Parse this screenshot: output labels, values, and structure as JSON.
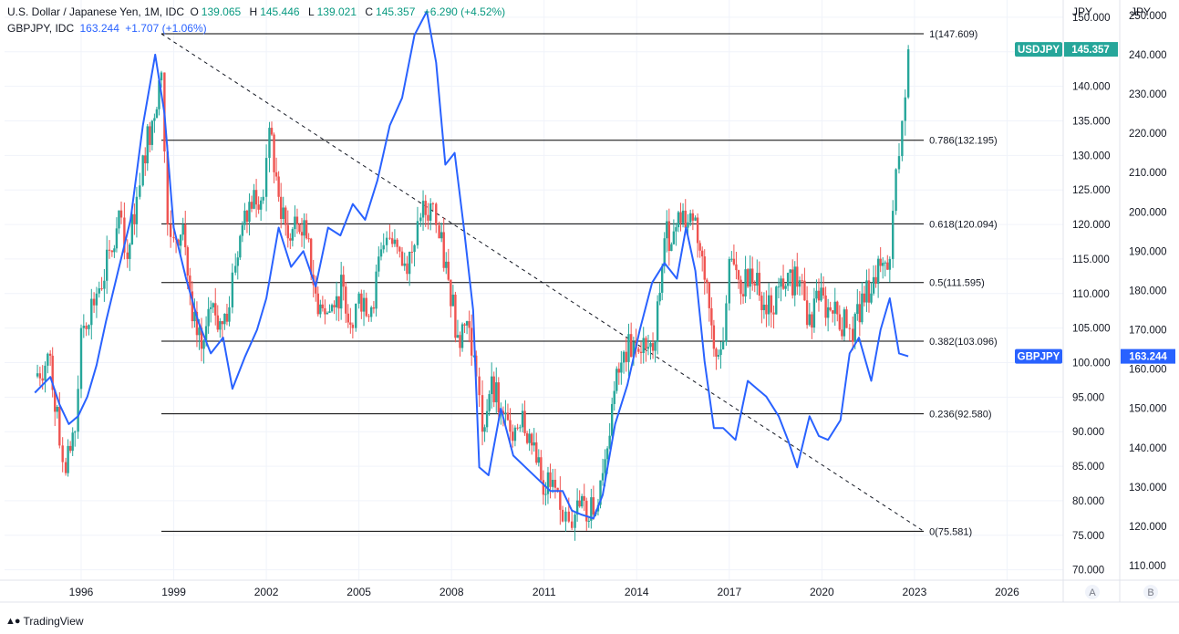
{
  "legend": {
    "main": {
      "name": "U.S. Dollar / Japanese Yen, 1M, IDC",
      "open_label": "O",
      "open": "139.065",
      "high_label": "H",
      "high": "145.446",
      "low_label": "L",
      "low": "139.021",
      "close_label": "C",
      "close": "145.357",
      "change": "+6.290 (+4.52%)"
    },
    "compare": {
      "name": "GBPJPY, IDC",
      "value": "163.244",
      "change": "+1.707 (+1.06%)"
    }
  },
  "axis": {
    "a_unit": "JPY",
    "b_unit": "JPY",
    "a_button": "A",
    "b_button": "B"
  },
  "colors": {
    "up": "#26a69a",
    "down": "#ef5350",
    "compare_line": "#2962ff",
    "usdjpy_badge": "#26a69a",
    "gbpjpy_badge": "#2962ff"
  },
  "brand": {
    "text": "TradingView"
  },
  "chart_data": {
    "type": "line",
    "x_ticks": [
      "1996",
      "1999",
      "2002",
      "2005",
      "2008",
      "2011",
      "2014",
      "2017",
      "2020",
      "2023",
      "2026"
    ],
    "left_axis_ticks": [
      "150.000",
      "145.000",
      "140.000",
      "135.000",
      "130.000",
      "125.000",
      "120.000",
      "115.000",
      "110.000",
      "105.000",
      "100.000",
      "95.000",
      "90.000",
      "85.000",
      "80.000",
      "75.000",
      "70.000"
    ],
    "right_axis_ticks": [
      "250.000",
      "240.000",
      "230.000",
      "220.000",
      "210.000",
      "200.000",
      "190.000",
      "180.000",
      "170.000",
      "160.000",
      "150.000",
      "140.000",
      "130.000",
      "120.000",
      "110.000"
    ],
    "ylim_a": [
      68.5,
      152.5
    ],
    "ylim_b": [
      106.3,
      253.9
    ],
    "series": [
      {
        "name": "USDJPY",
        "type": "candlestick",
        "last_value": "145.357",
        "x": [
          1994.5,
          1995.0,
          1995.3,
          1995.5,
          1995.8,
          1996.0,
          1996.5,
          1997.0,
          1997.3,
          1997.5,
          1997.8,
          1998.0,
          1998.3,
          1998.6,
          1998.8,
          1999.0,
          1999.3,
          1999.6,
          1999.9,
          2000.2,
          2000.5,
          2000.8,
          2001.0,
          2001.3,
          2001.6,
          2001.9,
          2002.1,
          2002.4,
          2002.7,
          2003.0,
          2003.3,
          2003.6,
          2003.9,
          2004.2,
          2004.5,
          2004.8,
          2005.0,
          2005.4,
          2005.8,
          2006.0,
          2006.4,
          2006.8,
          2007.0,
          2007.4,
          2007.6,
          2007.9,
          2008.2,
          2008.5,
          2008.8,
          2009.0,
          2009.3,
          2009.6,
          2009.9,
          2010.3,
          2010.6,
          2010.9,
          2011.2,
          2011.6,
          2011.8,
          2012.0,
          2012.3,
          2012.6,
          2012.9,
          2013.2,
          2013.5,
          2013.9,
          2014.3,
          2014.6,
          2014.9,
          2015.2,
          2015.5,
          2015.9,
          2016.2,
          2016.5,
          2016.8,
          2017.0,
          2017.3,
          2017.6,
          2017.9,
          2018.2,
          2018.6,
          2018.9,
          2019.2,
          2019.6,
          2019.9,
          2020.2,
          2020.5,
          2020.8,
          2021.0,
          2021.3,
          2021.6,
          2021.9,
          2022.2,
          2022.4,
          2022.6,
          2022.8
        ],
        "close": [
          98.0,
          101.0,
          88.0,
          84.0,
          90.0,
          105.0,
          110.0,
          116.0,
          121.0,
          115.0,
          124.0,
          130.0,
          135.0,
          142.0,
          120.0,
          118.0,
          120.0,
          106.0,
          102.0,
          108.0,
          106.0,
          108.0,
          114.0,
          122.0,
          125.0,
          124.0,
          134.0,
          124.0,
          118.0,
          120.0,
          118.0,
          110.0,
          107.0,
          108.0,
          111.0,
          105.0,
          110.0,
          108.0,
          117.0,
          118.0,
          114.0,
          117.0,
          121.0,
          123.0,
          118.0,
          112.0,
          104.0,
          106.0,
          98.0,
          90.0,
          98.0,
          93.0,
          90.0,
          93.0,
          88.0,
          83.0,
          82.0,
          77.0,
          77.0,
          78.0,
          80.0,
          78.0,
          84.0,
          94.0,
          100.0,
          103.0,
          102.0,
          103.0,
          118.0,
          119.0,
          122.0,
          121.0,
          112.0,
          102.0,
          103.0,
          115.0,
          112.0,
          111.0,
          113.0,
          107.0,
          111.0,
          113.0,
          111.0,
          107.0,
          109.0,
          108.0,
          107.0,
          105.0,
          103.0,
          110.0,
          110.0,
          114.0,
          115.0,
          128.0,
          135.0,
          145.357
        ]
      },
      {
        "name": "GBPJPY",
        "type": "line",
        "axis": "B",
        "last_value": "163.244",
        "x": [
          1994.5,
          1995.0,
          1995.3,
          1995.6,
          1995.9,
          1996.2,
          1996.5,
          1996.8,
          1997.2,
          1997.6,
          1998.0,
          1998.4,
          1998.7,
          1999.0,
          1999.4,
          1999.8,
          2000.2,
          2000.6,
          2000.9,
          2001.3,
          2001.7,
          2002.0,
          2002.4,
          2002.8,
          2003.2,
          2003.6,
          2004.0,
          2004.4,
          2004.8,
          2005.2,
          2005.6,
          2006.0,
          2006.4,
          2006.8,
          2007.2,
          2007.5,
          2007.8,
          2008.1,
          2008.4,
          2008.7,
          2008.9,
          2009.2,
          2009.6,
          2010.0,
          2010.4,
          2010.8,
          2011.2,
          2011.6,
          2011.9,
          2012.2,
          2012.6,
          2012.9,
          2013.3,
          2013.7,
          2014.1,
          2014.5,
          2014.9,
          2015.3,
          2015.6,
          2015.9,
          2016.2,
          2016.5,
          2016.8,
          2017.2,
          2017.6,
          2017.9,
          2018.2,
          2018.6,
          2018.9,
          2019.2,
          2019.6,
          2019.9,
          2020.2,
          2020.6,
          2020.9,
          2021.2,
          2021.6,
          2021.9,
          2022.2,
          2022.5,
          2022.8
        ],
        "values": [
          154,
          158,
          151,
          146,
          148,
          153,
          161,
          172,
          185,
          198,
          222,
          240,
          225,
          196,
          183,
          172,
          164,
          168,
          155,
          163,
          170,
          178,
          196,
          186,
          190,
          181,
          196,
          194,
          202,
          198,
          208,
          222,
          229,
          245,
          251,
          238,
          212,
          215,
          196,
          175,
          135,
          133,
          150,
          138,
          135,
          132,
          129,
          129,
          124,
          123,
          122,
          128,
          146,
          156,
          170,
          182,
          187,
          183,
          196,
          185,
          162,
          145,
          145,
          142,
          157,
          155,
          153,
          148,
          142,
          135,
          148,
          143,
          142,
          147,
          164,
          168,
          157,
          170,
          178,
          164,
          163.244
        ]
      }
    ],
    "fibonacci": [
      {
        "label": "1(147.609)",
        "value": 147.609
      },
      {
        "label": "0.786(132.195)",
        "value": 132.195
      },
      {
        "label": "0.618(120.094)",
        "value": 120.094
      },
      {
        "label": "0.5(111.595)",
        "value": 111.595
      },
      {
        "label": "0.382(103.096)",
        "value": 103.096
      },
      {
        "label": "0.236(92.580)",
        "value": 92.58
      },
      {
        "label": "0(75.581)",
        "value": 75.581
      }
    ],
    "trend_line": {
      "from": {
        "x": 1998.6,
        "y": 147.609
      },
      "to": {
        "x": 2023.3,
        "y": 75.581
      },
      "style": "dashed"
    },
    "labels": {
      "main_badge": "USDJPY",
      "compare_badge": "GBPJPY"
    },
    "grid": true,
    "legend_position": "top-left"
  }
}
